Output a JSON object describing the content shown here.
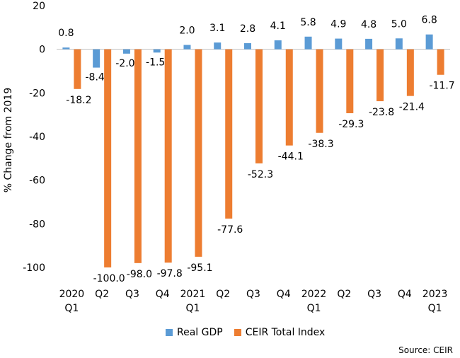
{
  "chart_data": {
    "type": "bar",
    "categories": [
      [
        "2020",
        "Q1"
      ],
      [
        "Q2"
      ],
      [
        "Q3"
      ],
      [
        "Q4"
      ],
      [
        "2021",
        "Q1"
      ],
      [
        "Q2"
      ],
      [
        "Q3"
      ],
      [
        "Q4"
      ],
      [
        "2022",
        "Q1"
      ],
      [
        "Q2"
      ],
      [
        "Q3"
      ],
      [
        "Q4"
      ],
      [
        "2023",
        "Q1"
      ]
    ],
    "series": [
      {
        "name": "Real GDP",
        "color": "#5b9bd5",
        "values": [
          0.8,
          -8.4,
          -2.0,
          -1.5,
          2.0,
          3.1,
          2.8,
          4.1,
          5.8,
          4.9,
          4.8,
          5.0,
          6.8
        ],
        "labels": [
          "0.8",
          "-8.4",
          "-2.0",
          "-1.5",
          "2.0",
          "3.1",
          "2.8",
          "4.1",
          "5.8",
          "4.9",
          "4.8",
          "5.0",
          "6.8"
        ]
      },
      {
        "name": "CEIR Total Index",
        "color": "#ed7d31",
        "values": [
          -18.2,
          -100.0,
          -98.0,
          -97.8,
          -95.1,
          -77.6,
          -52.3,
          -44.1,
          -38.3,
          -29.3,
          -23.8,
          -21.4,
          -11.7
        ],
        "labels": [
          "-18.2",
          "-100.0",
          "-98.0",
          "-97.8",
          "-95.1",
          "-77.6",
          "-52.3",
          "-44.1",
          "-38.3",
          "-29.3",
          "-23.8",
          "-21.4",
          "-11.7"
        ]
      }
    ],
    "ylabel": "% Change from 2019",
    "ylim": [
      -100,
      20
    ],
    "yticks": [
      20,
      0,
      -20,
      -40,
      -60,
      -80,
      -100
    ],
    "grid": false,
    "legend": "bottom"
  },
  "source": "Source: CEIR"
}
